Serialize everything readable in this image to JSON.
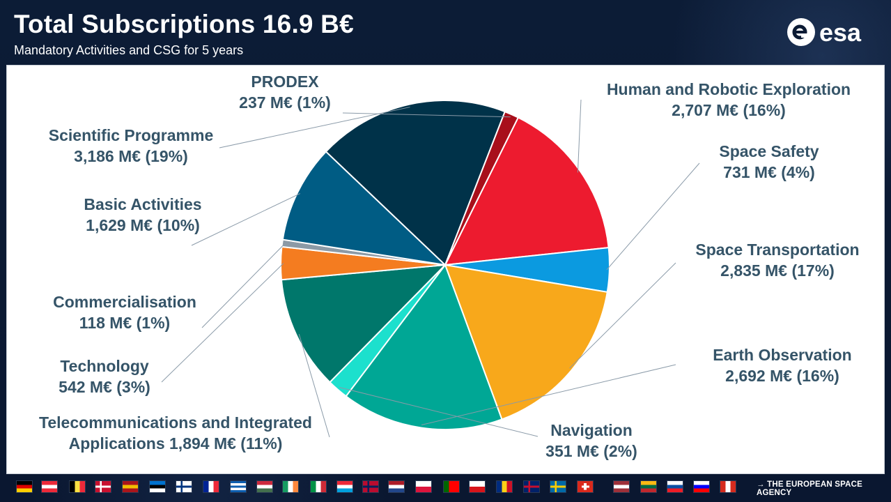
{
  "header": {
    "title": "Total Subscriptions 16.9 B€",
    "subtitle": "Mandatory Activities and CSG for 5 years",
    "logo_text": "esa"
  },
  "chart_data": {
    "type": "pie",
    "title": "",
    "unit": "M€",
    "slices": [
      {
        "name": "Human and Robotic Exploration",
        "value": 2707,
        "percent": 16,
        "label_lines": [
          "Human and Robotic Exploration",
          "2,707 M€  (16%)"
        ],
        "color": "#ed1b2f"
      },
      {
        "name": "Space Safety",
        "value": 731,
        "percent": 4,
        "label_lines": [
          "Space Safety",
          "731 M€  (4%)"
        ],
        "color": "#0b9ae0"
      },
      {
        "name": "Space Transportation",
        "value": 2835,
        "percent": 17,
        "label_lines": [
          "Space Transportation",
          "2,835 M€  (17%)"
        ],
        "color": "#f8a81b"
      },
      {
        "name": "Earth Observation",
        "value": 2692,
        "percent": 16,
        "label_lines": [
          "Earth Observation",
          "2,692 M€  (16%)"
        ],
        "color": "#00a795"
      },
      {
        "name": "Navigation",
        "value": 351,
        "percent": 2,
        "label_lines": [
          "Navigation",
          "351 M€  (2%)"
        ],
        "color": "#1ce0cd"
      },
      {
        "name": "Telecommunications and Integrated Applications",
        "value": 1894,
        "percent": 11,
        "label_lines": [
          "Telecommunications and Integrated",
          "Applications 1,894 M€  (11%)"
        ],
        "color": "#00776b"
      },
      {
        "name": "Technology",
        "value": 542,
        "percent": 3,
        "label_lines": [
          "Technology",
          "542 M€  (3%)"
        ],
        "color": "#f47c20"
      },
      {
        "name": "Commercialisation",
        "value": 118,
        "percent": 1,
        "label_lines": [
          "Commercialisation",
          "118 M€  (1%)"
        ],
        "color": "#8c9aa6"
      },
      {
        "name": "Basic Activities",
        "value": 1629,
        "percent": 10,
        "label_lines": [
          "Basic Activities",
          "1,629 M€  (10%)"
        ],
        "color": "#005c84"
      },
      {
        "name": "Scientific Programme",
        "value": 3186,
        "percent": 19,
        "label_lines": [
          "Scientific Programme",
          "3,186 M€  (19%)"
        ],
        "color": "#003249"
      },
      {
        "name": "PRODEX",
        "value": 237,
        "percent": 1,
        "label_lines": [
          "PRODEX",
          "237 M€  (1%)"
        ],
        "color": "#a80f1b"
      }
    ]
  },
  "footer": {
    "agency": "→ THE EUROPEAN SPACE AGENCY",
    "flags": [
      {
        "country": "Germany",
        "colors": [
          "#000000",
          "#dd0000",
          "#ffce00"
        ],
        "orientation": "h"
      },
      {
        "country": "Austria",
        "colors": [
          "#ed2939",
          "#ffffff",
          "#ed2939"
        ],
        "orientation": "h"
      },
      {
        "country": "Belgium",
        "colors": [
          "#000000",
          "#fae042",
          "#ed2939"
        ],
        "orientation": "v"
      },
      {
        "country": "Denmark",
        "colors": [
          "#c8102e",
          "#ffffff"
        ],
        "orientation": "cross"
      },
      {
        "country": "Spain",
        "colors": [
          "#aa151b",
          "#f1bf00",
          "#aa151b"
        ],
        "orientation": "h"
      },
      {
        "country": "Estonia",
        "colors": [
          "#0072ce",
          "#000000",
          "#ffffff"
        ],
        "orientation": "h"
      },
      {
        "country": "Finland",
        "colors": [
          "#ffffff",
          "#003580"
        ],
        "orientation": "cross"
      },
      {
        "country": "France",
        "colors": [
          "#002395",
          "#ffffff",
          "#ed2939"
        ],
        "orientation": "v"
      },
      {
        "country": "Greece",
        "colors": [
          "#0d5eaf",
          "#ffffff",
          "#0d5eaf",
          "#ffffff",
          "#0d5eaf"
        ],
        "orientation": "h"
      },
      {
        "country": "Hungary",
        "colors": [
          "#cd2a3e",
          "#ffffff",
          "#436f4d"
        ],
        "orientation": "h"
      },
      {
        "country": "Ireland",
        "colors": [
          "#169b62",
          "#ffffff",
          "#ff883e"
        ],
        "orientation": "v"
      },
      {
        "country": "Italy",
        "colors": [
          "#009246",
          "#ffffff",
          "#ce2b37"
        ],
        "orientation": "v"
      },
      {
        "country": "Luxembourg",
        "colors": [
          "#ed2939",
          "#ffffff",
          "#00a1de"
        ],
        "orientation": "h"
      },
      {
        "country": "Norway",
        "colors": [
          "#ba0c2f",
          "#00205b"
        ],
        "orientation": "cross"
      },
      {
        "country": "Netherlands",
        "colors": [
          "#ae1c28",
          "#ffffff",
          "#21468b"
        ],
        "orientation": "h"
      },
      {
        "country": "Poland",
        "colors": [
          "#ffffff",
          "#dc143c"
        ],
        "orientation": "h"
      },
      {
        "country": "Portugal",
        "colors": [
          "#006600",
          "#ff0000",
          "#ff0000"
        ],
        "orientation": "v"
      },
      {
        "country": "Czech Republic",
        "colors": [
          "#ffffff",
          "#d7141a"
        ],
        "orientation": "h"
      },
      {
        "country": "Romania",
        "colors": [
          "#002b7f",
          "#fcd116",
          "#ce1126"
        ],
        "orientation": "v"
      },
      {
        "country": "United Kingdom",
        "colors": [
          "#012169",
          "#c8102e"
        ],
        "orientation": "cross"
      },
      {
        "country": "Sweden",
        "colors": [
          "#006aa7",
          "#fecc00"
        ],
        "orientation": "cross"
      },
      {
        "country": "Switzerland",
        "colors": [
          "#da291c",
          "#ffffff"
        ],
        "orientation": "plus"
      },
      {
        "country": "Latvia",
        "colors": [
          "#9e3039",
          "#ffffff",
          "#9e3039"
        ],
        "orientation": "h"
      },
      {
        "country": "Lithuania",
        "colors": [
          "#fdb913",
          "#006a44",
          "#c1272d"
        ],
        "orientation": "h"
      },
      {
        "country": "Slovakia",
        "colors": [
          "#ffffff",
          "#0b4ea2",
          "#ee1c25"
        ],
        "orientation": "h"
      },
      {
        "country": "Slovenia",
        "colors": [
          "#ffffff",
          "#0000ff",
          "#ff0000"
        ],
        "orientation": "h"
      },
      {
        "country": "Canada",
        "colors": [
          "#d52b1e",
          "#ffffff",
          "#d52b1e"
        ],
        "orientation": "v"
      }
    ]
  }
}
